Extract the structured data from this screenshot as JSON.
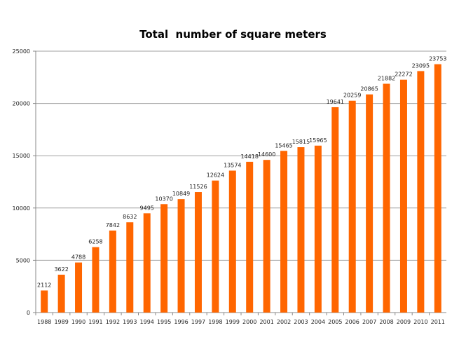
{
  "chart_data": {
    "type": "bar",
    "title": "Total  number of square meters",
    "xlabel": "",
    "ylabel": "",
    "ylim": [
      0,
      25000
    ],
    "yticks": [
      0,
      5000,
      10000,
      15000,
      20000,
      25000
    ],
    "grid": true,
    "legend": "none",
    "bar_color": "#ff6600",
    "categories": [
      "1988",
      "1989",
      "1990",
      "1991",
      "1992",
      "1993",
      "1994",
      "1995",
      "1996",
      "1997",
      "1998",
      "1999",
      "2000",
      "2001",
      "2002",
      "2003",
      "2004",
      "2005",
      "2006",
      "2007",
      "2008",
      "2009",
      "2010",
      "2011"
    ],
    "values": [
      2112,
      3622,
      4788,
      6258,
      7842,
      8632,
      9495,
      10370,
      10849,
      11526,
      12624,
      13574,
      14418,
      14600,
      15465,
      15815,
      15965,
      19641,
      20259,
      20865,
      21882,
      22272,
      23095,
      23753
    ]
  }
}
